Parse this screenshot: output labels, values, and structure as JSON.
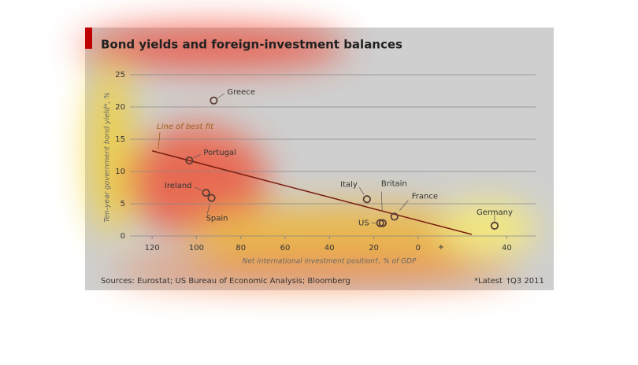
{
  "chart_data": {
    "type": "scatter",
    "title": "Bond yields and foreign-investment balances",
    "y_label": "Ten-year government bond yield*, %",
    "x_label": "Net international investment position†, % of GDP",
    "source": "Sources: Eurostat; US Bureau of Economic Analysis; Bloomberg",
    "footnotes": [
      "*Latest",
      "†Q3 2011"
    ],
    "sign_labels": [
      "+"
    ],
    "fit_label": "Line of best fit",
    "fit_line": {
      "x": [
        -120,
        24.2
      ],
      "y": [
        13.2,
        0.24
      ]
    },
    "labels": [
      "Greece",
      "Portugal",
      "Ireland",
      "Spain",
      "Italy",
      "Britain",
      "US",
      "France",
      "Germany"
    ],
    "x": [
      -92.2,
      -103.2,
      -95.7,
      -93.2,
      -23.1,
      -16,
      -17.1,
      -10.7,
      34.5
    ],
    "values": [
      21.0,
      11.7,
      6.7,
      5.9,
      5.7,
      2.0,
      2.0,
      3.0,
      1.6
    ],
    "xlim": [
      -130,
      53
    ],
    "ylim": [
      0,
      25
    ],
    "xticks": [
      {
        "value": -120,
        "label": "120"
      },
      {
        "value": -100,
        "label": "100"
      },
      {
        "value": -80,
        "label": "80"
      },
      {
        "value": -60,
        "label": "60"
      },
      {
        "value": -40,
        "label": "40"
      },
      {
        "value": -20,
        "label": "20"
      },
      0,
      40
    ],
    "yticks": [
      0,
      5,
      10,
      15,
      20,
      25
    ],
    "grid": true,
    "color": "#5a3e36",
    "fit_color": "#7a1e10"
  }
}
